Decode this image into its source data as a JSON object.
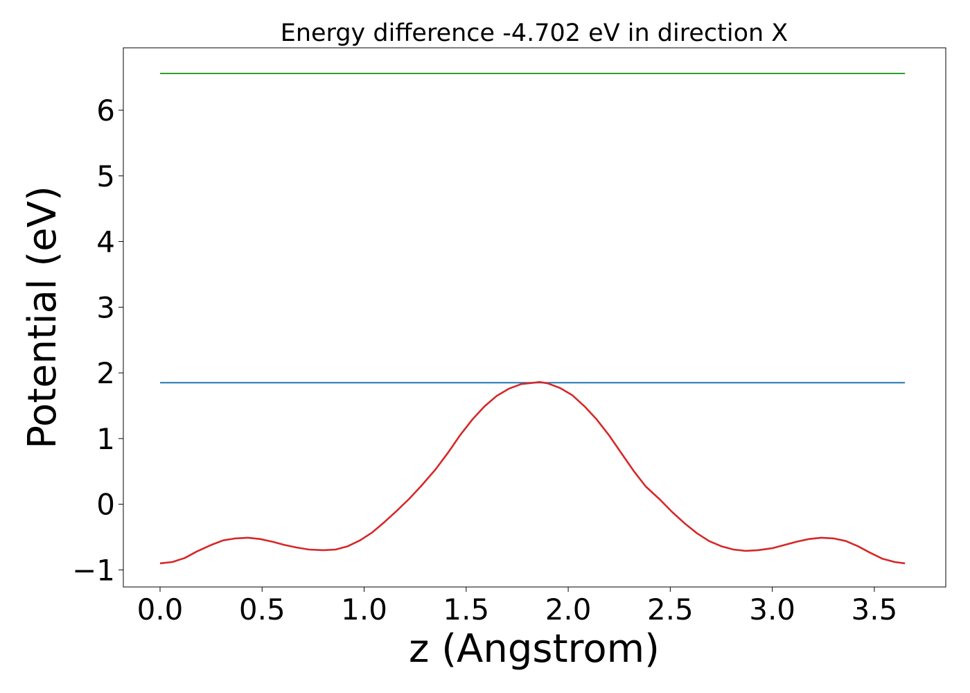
{
  "chart_data": {
    "type": "line",
    "title": "Energy difference -4.702 eV in direction X",
    "xlabel": "z (Angstrom)",
    "ylabel": "Potential (eV)",
    "xlim": [
      -0.18,
      3.85
    ],
    "ylim": [
      -1.26,
      6.95
    ],
    "x_ticks": [
      0.0,
      0.5,
      1.0,
      1.5,
      2.0,
      2.5,
      3.0,
      3.5
    ],
    "x_tick_labels": [
      "0.0",
      "0.5",
      "1.0",
      "1.5",
      "2.0",
      "2.5",
      "3.0",
      "3.5"
    ],
    "y_ticks": [
      -1,
      0,
      1,
      2,
      3,
      4,
      5,
      6
    ],
    "y_tick_labels": [
      "−1",
      "0",
      "1",
      "2",
      "3",
      "4",
      "5",
      "6"
    ],
    "grid": false,
    "legend": "none",
    "series": [
      {
        "color": "#2ca02c",
        "x": [
          0.0,
          3.65
        ],
        "y": [
          6.56,
          6.56
        ]
      },
      {
        "color": "#1f77b4",
        "x": [
          0.0,
          3.65
        ],
        "y": [
          1.85,
          1.85
        ]
      },
      {
        "color": "#d62728",
        "x": [
          0.0,
          0.06,
          0.12,
          0.18,
          0.25,
          0.31,
          0.37,
          0.43,
          0.49,
          0.55,
          0.61,
          0.67,
          0.73,
          0.8,
          0.86,
          0.92,
          0.98,
          1.04,
          1.1,
          1.16,
          1.22,
          1.28,
          1.35,
          1.41,
          1.47,
          1.53,
          1.59,
          1.65,
          1.71,
          1.77,
          1.83,
          1.86,
          1.9,
          1.96,
          2.02,
          2.08,
          2.14,
          2.2,
          2.26,
          2.32,
          2.38,
          2.45,
          2.51,
          2.57,
          2.63,
          2.69,
          2.75,
          2.81,
          2.87,
          2.93,
          3.0,
          3.06,
          3.12,
          3.18,
          3.24,
          3.3,
          3.36,
          3.42,
          3.48,
          3.54,
          3.6,
          3.65
        ],
        "y": [
          -0.9,
          -0.88,
          -0.82,
          -0.72,
          -0.62,
          -0.55,
          -0.52,
          -0.51,
          -0.53,
          -0.57,
          -0.62,
          -0.66,
          -0.69,
          -0.7,
          -0.69,
          -0.64,
          -0.55,
          -0.43,
          -0.27,
          -0.1,
          0.08,
          0.28,
          0.53,
          0.78,
          1.05,
          1.29,
          1.49,
          1.65,
          1.76,
          1.83,
          1.85,
          1.86,
          1.84,
          1.77,
          1.66,
          1.49,
          1.29,
          1.05,
          0.78,
          0.51,
          0.27,
          0.07,
          -0.12,
          -0.29,
          -0.44,
          -0.56,
          -0.64,
          -0.69,
          -0.71,
          -0.7,
          -0.67,
          -0.62,
          -0.57,
          -0.53,
          -0.51,
          -0.52,
          -0.56,
          -0.64,
          -0.74,
          -0.83,
          -0.88,
          -0.9
        ]
      }
    ]
  }
}
